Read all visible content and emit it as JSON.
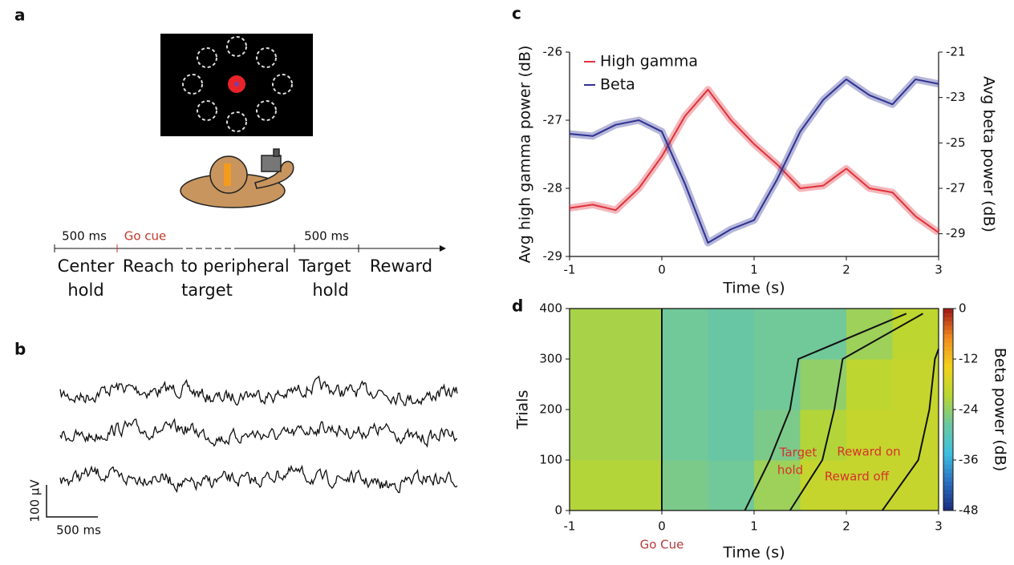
{
  "panel_labels": [
    "a",
    "b",
    "c",
    "d"
  ],
  "panel_a": {
    "timeline": {
      "durations": [
        "500 ms",
        "500 ms"
      ],
      "go_cue": "Go cue",
      "phases": [
        [
          "Center",
          "hold"
        ],
        [
          "Reach"
        ],
        [
          "to peripheral",
          "target"
        ],
        [
          "Target",
          "hold"
        ],
        [
          "Reward"
        ]
      ]
    }
  },
  "panel_b": {
    "scale_y": "100 µV",
    "scale_x": "500 ms"
  },
  "chart_data": [
    {
      "type": "line",
      "x": [
        -1,
        -0.75,
        -0.5,
        -0.25,
        0,
        0.25,
        0.5,
        0.75,
        1,
        1.25,
        1.5,
        1.75,
        2,
        2.25,
        2.5,
        2.75,
        3
      ],
      "series": [
        {
          "name": "High gamma",
          "color": "#e0323c",
          "values": [
            -28.29,
            -28.24,
            -28.32,
            -28.0,
            -27.53,
            -26.94,
            -26.55,
            -27.0,
            -27.35,
            -27.65,
            -28.0,
            -27.96,
            -27.71,
            -28.0,
            -28.06,
            -28.41,
            -28.65
          ]
        },
        {
          "name": "Beta",
          "color": "#2e3192",
          "axis": "y2",
          "values": [
            -24.6,
            -24.7,
            -24.2,
            -24.0,
            -24.5,
            -26.8,
            -29.4,
            -28.8,
            -28.4,
            -26.6,
            -24.5,
            -23.1,
            -22.2,
            -22.9,
            -23.3,
            -22.2,
            -22.4
          ]
        }
      ],
      "xlabel": "Time (s)",
      "ylabel": "Avg high gamma power (dB)",
      "y2label": "Avg beta power (dB)",
      "xlim": [
        -1,
        3
      ],
      "xticks": [
        -1,
        0,
        1,
        2,
        3
      ],
      "ylim": [
        -29,
        -26
      ],
      "yticks": [
        -29,
        -28,
        -27,
        -26
      ],
      "y2lim": [
        -30,
        -21
      ],
      "y2ticks": [
        -29,
        -27,
        -25,
        -23,
        -21
      ],
      "legend": "upper left"
    },
    {
      "type": "heatmap",
      "xlabel": "Time (s)",
      "ylabel": "Trials",
      "xlim": [
        -1,
        3
      ],
      "xticks": [
        -1,
        0,
        1,
        2,
        3
      ],
      "ylim": [
        0,
        400
      ],
      "yticks": [
        0,
        100,
        200,
        300,
        400
      ],
      "x_bins": [
        -1,
        -0.5,
        0,
        0.5,
        1,
        1.5,
        2,
        2.5,
        3
      ],
      "y_bins": [
        0,
        100,
        200,
        300,
        400
      ],
      "values": [
        [
          -21,
          -21,
          -26,
          -27,
          -23,
          -19,
          -19,
          -19
        ],
        [
          -22,
          -22,
          -27,
          -28,
          -26,
          -21,
          -19,
          -19
        ],
        [
          -22,
          -22,
          -27,
          -28,
          -27,
          -24,
          -20,
          -19
        ],
        [
          -22,
          -22,
          -27,
          -28,
          -27,
          -27,
          -23,
          -20
        ]
      ],
      "colorbar": {
        "label": "Beta power (dB)",
        "lim": [
          -48,
          0
        ],
        "ticks": [
          0,
          -12,
          -24,
          -36,
          -48
        ],
        "colors": [
          "#1b2a7a",
          "#2a6fc0",
          "#3cc0e0",
          "#6cc7a0",
          "#b8d632",
          "#f2d21a",
          "#f08a20",
          "#a01818"
        ]
      },
      "boundaries": [
        {
          "x": [
            0.9,
            1.17,
            1.39,
            1.48,
            2.65
          ],
          "y": [
            0,
            100,
            200,
            300,
            390
          ]
        },
        {
          "x": [
            1.39,
            1.74,
            1.87,
            1.96,
            2.83
          ],
          "y": [
            0,
            100,
            200,
            300,
            390
          ]
        },
        {
          "x": [
            2.39,
            2.78,
            2.9,
            2.96,
            3
          ],
          "y": [
            0,
            100,
            200,
            300,
            320
          ]
        }
      ],
      "annotations": [
        {
          "text": "Go Cue",
          "x": 0
        }
      ],
      "event_labels": [
        "Target",
        "hold",
        "Reward on",
        "Reward off"
      ]
    }
  ]
}
